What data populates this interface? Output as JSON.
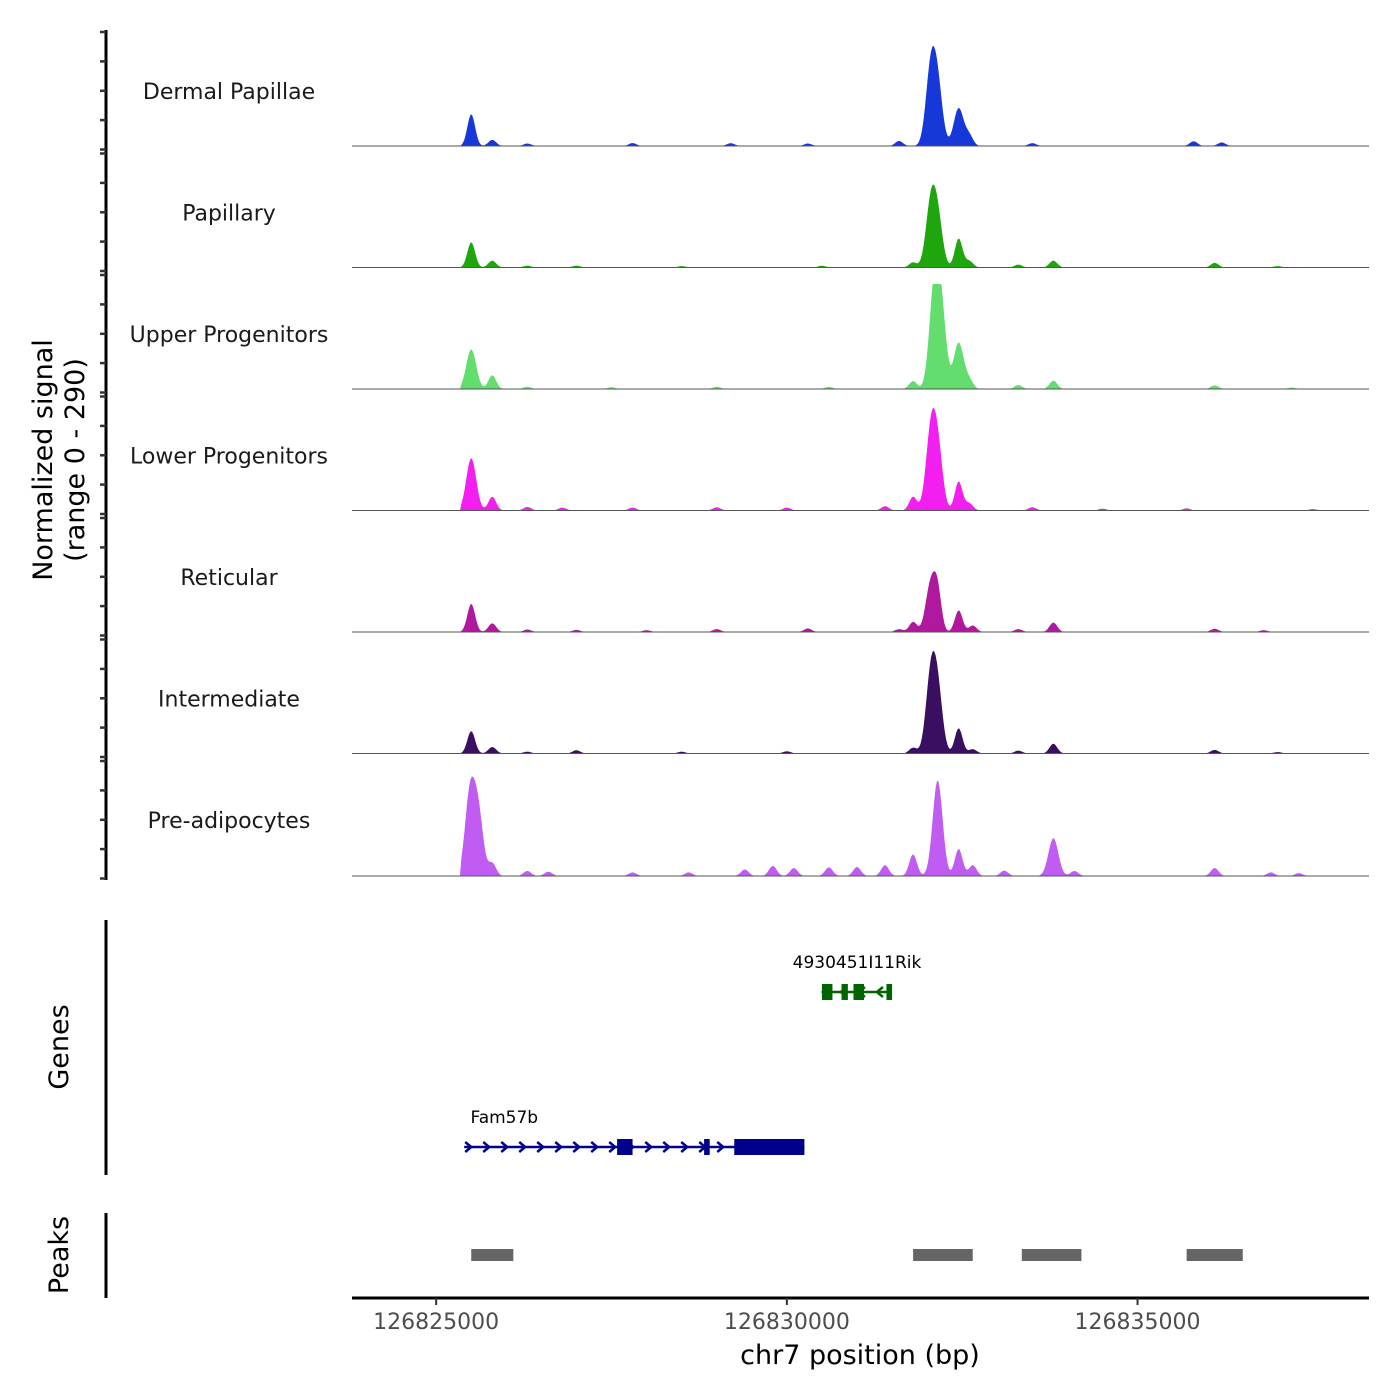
{
  "chart_data": {
    "type": "area",
    "chromosome": "chr7",
    "xlim": [
      126823800,
      126838300
    ],
    "x_ticks": [
      126825000,
      126830000,
      126835000
    ],
    "x_tick_labels": [
      "126825000",
      "126830000",
      "126835000"
    ],
    "xlabel": "chr7 position (bp)",
    "signal_axis": {
      "title": "Normalized signal",
      "subtitle": "(range 0 - 290)",
      "ylim": [
        0,
        290
      ]
    },
    "genes_axis_title": "Genes",
    "peaks_axis_title": "Peaks",
    "tracks": [
      {
        "name": "Dermal Papillae",
        "color": "#1638d8",
        "peaks": [
          [
            126825500,
            88
          ],
          [
            126825800,
            17
          ],
          [
            126826300,
            7
          ],
          [
            126827800,
            8
          ],
          [
            126829200,
            8
          ],
          [
            126830300,
            7
          ],
          [
            126831600,
            14
          ],
          [
            126832050,
            200
          ],
          [
            126832150,
            155
          ],
          [
            126832450,
            105
          ],
          [
            126832600,
            28
          ],
          [
            126833500,
            8
          ],
          [
            126835800,
            13
          ],
          [
            126836200,
            10
          ],
          [
            126838100,
            3
          ]
        ]
      },
      {
        "name": "Papillary",
        "color": "#1fa60f",
        "peaks": [
          [
            126825500,
            70
          ],
          [
            126825800,
            19
          ],
          [
            126826300,
            5
          ],
          [
            126827000,
            5
          ],
          [
            126828500,
            4
          ],
          [
            126830500,
            5
          ],
          [
            126831800,
            14
          ],
          [
            126832050,
            165
          ],
          [
            126832150,
            130
          ],
          [
            126832450,
            80
          ],
          [
            126832600,
            18
          ],
          [
            126833300,
            8
          ],
          [
            126833800,
            19
          ],
          [
            126836100,
            13
          ],
          [
            126837000,
            4
          ]
        ]
      },
      {
        "name": "Upper Progenitors",
        "color": "#62dd6e",
        "peaks": [
          [
            126825500,
            110
          ],
          [
            126825800,
            38
          ],
          [
            126826300,
            6
          ],
          [
            126827500,
            5
          ],
          [
            126829000,
            6
          ],
          [
            126830600,
            6
          ],
          [
            126831800,
            22
          ],
          [
            126832100,
            260
          ],
          [
            126832200,
            205
          ],
          [
            126832450,
            128
          ],
          [
            126832600,
            24
          ],
          [
            126833300,
            11
          ],
          [
            126833800,
            23
          ],
          [
            126836100,
            10
          ],
          [
            126837200,
            4
          ]
        ]
      },
      {
        "name": "Lower Progenitors",
        "color": "#f31ff0",
        "peaks": [
          [
            126825500,
            145
          ],
          [
            126825800,
            38
          ],
          [
            126826300,
            10
          ],
          [
            126826800,
            8
          ],
          [
            126827800,
            8
          ],
          [
            126829000,
            9
          ],
          [
            126830000,
            8
          ],
          [
            126831400,
            12
          ],
          [
            126831800,
            38
          ],
          [
            126832050,
            200
          ],
          [
            126832150,
            165
          ],
          [
            126832450,
            80
          ],
          [
            126832600,
            20
          ],
          [
            126833500,
            9
          ],
          [
            126834500,
            5
          ],
          [
            126835700,
            6
          ],
          [
            126837500,
            4
          ]
        ]
      },
      {
        "name": "Reticular",
        "color": "#b0189d",
        "peaks": [
          [
            126825500,
            78
          ],
          [
            126825800,
            24
          ],
          [
            126826300,
            7
          ],
          [
            126827000,
            6
          ],
          [
            126828000,
            5
          ],
          [
            126829000,
            8
          ],
          [
            126830300,
            10
          ],
          [
            126831600,
            8
          ],
          [
            126831800,
            28
          ],
          [
            126832050,
            132
          ],
          [
            126832150,
            100
          ],
          [
            126832450,
            60
          ],
          [
            126832650,
            18
          ],
          [
            126833300,
            8
          ],
          [
            126833800,
            26
          ],
          [
            126836100,
            9
          ],
          [
            126836800,
            5
          ]
        ]
      },
      {
        "name": "Intermediate",
        "color": "#3a0e60",
        "peaks": [
          [
            126825500,
            62
          ],
          [
            126825800,
            18
          ],
          [
            126826300,
            5
          ],
          [
            126827000,
            9
          ],
          [
            126828500,
            5
          ],
          [
            126830000,
            6
          ],
          [
            126831800,
            16
          ],
          [
            126832050,
            200
          ],
          [
            126832150,
            165
          ],
          [
            126832450,
            70
          ],
          [
            126832650,
            12
          ],
          [
            126833300,
            8
          ],
          [
            126833800,
            27
          ],
          [
            126836100,
            10
          ],
          [
            126837000,
            4
          ]
        ]
      },
      {
        "name": "Pre-adipocytes",
        "color": "#c05cf2",
        "peaks": [
          [
            126825480,
            220
          ],
          [
            126825600,
            170
          ],
          [
            126825800,
            35
          ],
          [
            126826300,
            14
          ],
          [
            126826600,
            12
          ],
          [
            126827800,
            10
          ],
          [
            126828600,
            10
          ],
          [
            126829400,
            18
          ],
          [
            126829800,
            28
          ],
          [
            126830100,
            22
          ],
          [
            126830600,
            24
          ],
          [
            126831000,
            25
          ],
          [
            126831400,
            30
          ],
          [
            126831800,
            60
          ],
          [
            126832150,
            265
          ],
          [
            126832450,
            75
          ],
          [
            126832650,
            30
          ],
          [
            126833100,
            15
          ],
          [
            126833800,
            105
          ],
          [
            126834100,
            14
          ],
          [
            126836100,
            22
          ],
          [
            126836900,
            10
          ],
          [
            126837300,
            8
          ]
        ]
      }
    ],
    "genes": [
      {
        "name": "4930451I11Rik",
        "strand": "-",
        "color": "#006400",
        "row": 1,
        "start": 126830500,
        "end": 126831500,
        "exons": [
          [
            126830500,
            126830650
          ],
          [
            126830780,
            126830870
          ],
          [
            126830950,
            126831100
          ],
          [
            126831420,
            126831500
          ]
        ]
      },
      {
        "name": "Fam57b",
        "strand": "+",
        "color": "#00008b",
        "row": 2,
        "start": 126825400,
        "end": 126830250,
        "exons": [
          [
            126827580,
            126827800
          ],
          [
            126828820,
            126828900
          ],
          [
            126829250,
            126830250
          ]
        ]
      }
    ],
    "peaks": [
      [
        126825500,
        126826100
      ],
      [
        126831800,
        126832650
      ],
      [
        126833350,
        126834200
      ],
      [
        126835700,
        126836500
      ]
    ]
  }
}
